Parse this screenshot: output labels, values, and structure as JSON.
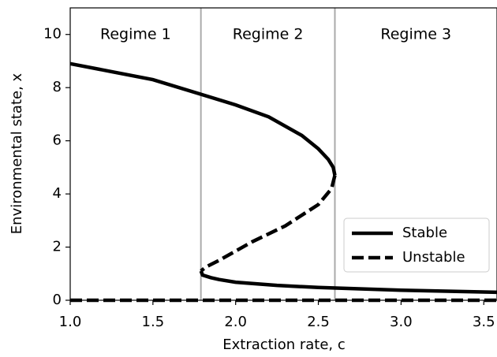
{
  "chart_data": {
    "type": "line",
    "xlabel": "Extraction rate, c",
    "ylabel": "Environmental state, x",
    "xlim": [
      1.0,
      3.58
    ],
    "ylim": [
      0,
      11
    ],
    "xticks": [
      {
        "value": 1.0,
        "label": "1.0"
      },
      1.5,
      {
        "value": 2.0,
        "label": "2.0"
      },
      2.5,
      {
        "value": 3.0,
        "label": "3.0"
      },
      3.5
    ],
    "yticks": [
      0,
      2,
      4,
      6,
      8,
      10
    ],
    "thresholds": [
      1.79,
      2.6
    ],
    "threshold_color": "#aaaaaa",
    "regimes": [
      "Regime 1",
      "Regime 2",
      "Regime 3"
    ],
    "legend": "lower right",
    "series": [
      {
        "name": "Stable",
        "color": "#000000",
        "style": "solid",
        "x": [
          1.0,
          1.25,
          1.5,
          1.79,
          2.0,
          2.2,
          2.4,
          2.5,
          2.56,
          2.59,
          2.6,
          null,
          1.79,
          1.8,
          1.85,
          1.9,
          2.0,
          2.25,
          2.5,
          3.0,
          3.58
        ],
        "values": [
          8.9,
          8.6,
          8.3,
          7.75,
          7.35,
          6.9,
          6.2,
          5.7,
          5.3,
          5.0,
          4.7,
          null,
          1.1,
          0.95,
          0.85,
          0.78,
          0.68,
          0.56,
          0.48,
          0.38,
          0.3
        ]
      },
      {
        "name": "Unstable",
        "color": "#000000",
        "style": "dashed",
        "x": [
          2.6,
          2.58,
          2.5,
          2.3,
          2.1,
          1.9,
          1.82,
          1.79,
          null,
          1.0,
          3.58
        ],
        "values": [
          4.7,
          4.2,
          3.6,
          2.8,
          2.2,
          1.5,
          1.25,
          1.1,
          null,
          0,
          0
        ]
      }
    ]
  }
}
